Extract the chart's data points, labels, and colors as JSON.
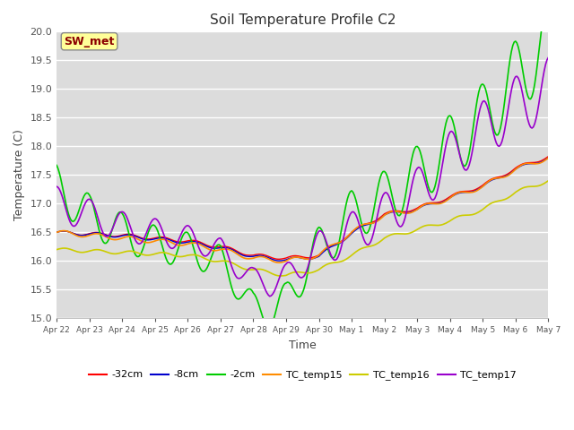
{
  "title": "Soil Temperature Profile C2",
  "xlabel": "Time",
  "ylabel": "Temperature (C)",
  "ylim": [
    15.0,
    20.0
  ],
  "yticks": [
    15.0,
    15.5,
    16.0,
    16.5,
    17.0,
    17.5,
    18.0,
    18.5,
    19.0,
    19.5,
    20.0
  ],
  "fig_bg_color": "#ffffff",
  "plot_bg_color": "#dcdcdc",
  "annotation_text": "SW_met",
  "annotation_bg": "#ffff99",
  "annotation_border": "#aaaaaa",
  "annotation_text_color": "#8b0000",
  "series": {
    "-32cm": {
      "color": "#ff0000",
      "lw": 1.0
    },
    "-8cm": {
      "color": "#0000cd",
      "lw": 1.0
    },
    "-2cm": {
      "color": "#00cc00",
      "lw": 1.2
    },
    "TC_temp15": {
      "color": "#ff8c00",
      "lw": 1.2
    },
    "TC_temp16": {
      "color": "#cccc00",
      "lw": 1.2
    },
    "TC_temp17": {
      "color": "#9900cc",
      "lw": 1.2
    }
  },
  "x_tick_labels": [
    "Apr 22",
    "Apr 23",
    "Apr 24",
    "Apr 25",
    "Apr 26",
    "Apr 27",
    "Apr 28",
    "Apr 29",
    "Apr 30",
    "May 1",
    "May 2",
    "May 3",
    "May 4",
    "May 5",
    "May 6",
    "May 7"
  ],
  "n_points": 361
}
